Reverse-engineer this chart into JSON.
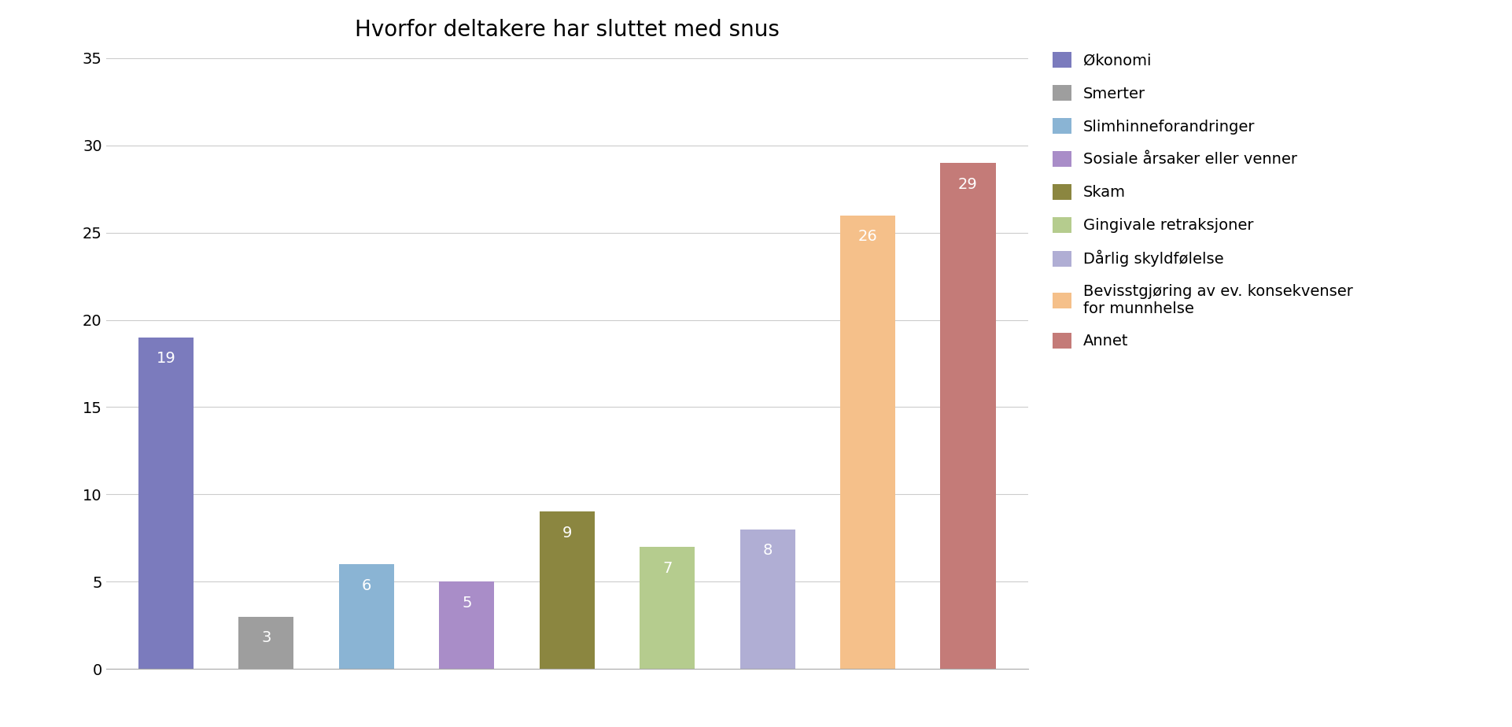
{
  "title": "Hvorfor deltakere har sluttet med snus",
  "categories": [
    "Økonomi",
    "Smerter",
    "Slimhinneforandringer",
    "Sosiale årsaker eller venner",
    "Skam",
    "Gingivale retraksjoner",
    "Dårlig skyldfølelse",
    "Bevisstgjøring av ev. konsekvenser\nfor munnhelse",
    "Annet"
  ],
  "values": [
    19,
    3,
    6,
    5,
    9,
    7,
    8,
    26,
    29
  ],
  "bar_colors": [
    "#7b7bbd",
    "#9e9e9e",
    "#8ab4d4",
    "#a98dc8",
    "#8b8640",
    "#b5cc8e",
    "#b0aed4",
    "#f5c08a",
    "#c47b78"
  ],
  "ylim": [
    0,
    35
  ],
  "yticks": [
    0,
    5,
    10,
    15,
    20,
    25,
    30,
    35
  ],
  "background_color": "#ffffff",
  "title_fontsize": 20,
  "label_fontsize": 14,
  "tick_fontsize": 14,
  "legend_fontsize": 14,
  "bar_width": 0.55
}
